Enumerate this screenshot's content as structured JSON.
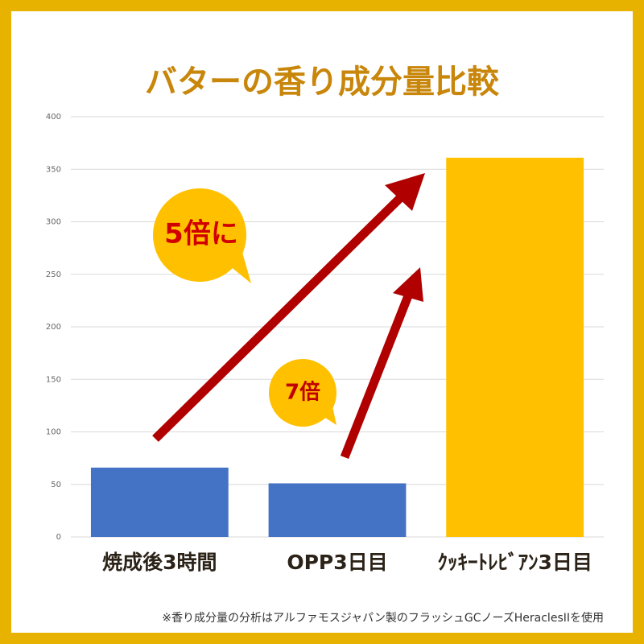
{
  "chart_data": {
    "type": "bar",
    "title": "バターの香り成分量比較",
    "categories": [
      "焼成後3時間",
      "OPP3日目",
      "ｸｯｷｰﾄﾚﾋﾞｱﾝ3日目"
    ],
    "values": [
      66,
      51,
      361
    ],
    "colors": [
      "#4472c4",
      "#4472c4",
      "#ffc000"
    ],
    "ylim": [
      0,
      400
    ],
    "yticks": [
      0,
      50,
      100,
      150,
      200,
      250,
      300,
      350,
      400
    ],
    "grid": true,
    "annotations": [
      "5倍に",
      "7倍"
    ],
    "footnote": "※香り成分量の分析はアルファモスジャパン製のフラッシュGCノーズHeraclesIIを使用"
  }
}
